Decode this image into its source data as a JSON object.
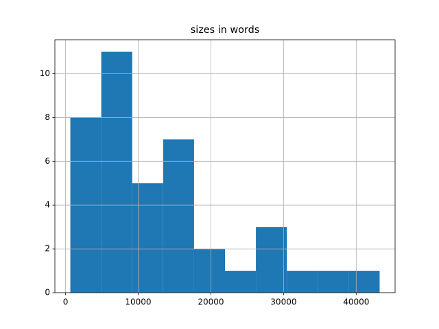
{
  "chart_data": {
    "type": "histogram",
    "title": "sizes in words",
    "bins": [
      660,
      4916,
      9172,
      13428,
      17684,
      21940,
      26196,
      30452,
      34708,
      38964,
      43220
    ],
    "values": [
      8,
      11,
      5,
      7,
      2,
      1,
      3,
      1,
      1,
      1
    ],
    "color": "#1f77b4",
    "xlim": [
      -1468,
      45348
    ],
    "xticks": [
      0,
      10000,
      20000,
      30000,
      40000
    ],
    "ylim": [
      0,
      11.55
    ],
    "yticks": [
      0,
      2,
      4,
      6,
      8,
      10
    ],
    "grid": true
  }
}
